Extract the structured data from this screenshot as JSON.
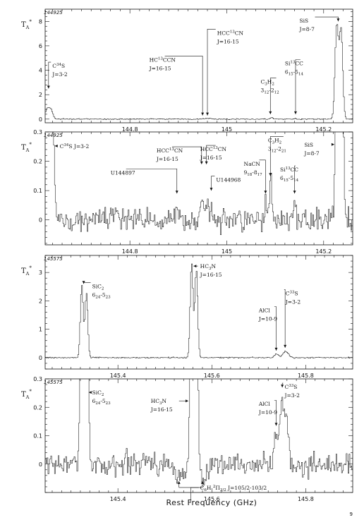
{
  "page_number": "9",
  "xlabel": "Rest Frequency (GHz)",
  "chart_data": [
    {
      "type": "line",
      "panel_id": "144925",
      "ylabel_main": "T",
      "ylabel_sub": "A",
      "ylabel_sup": "*",
      "xlim": [
        144.625,
        145.26
      ],
      "ylim": [
        -0.3,
        9.0
      ],
      "xticks": [
        144.8,
        145.0,
        145.2
      ],
      "xtick_labels": [
        "144.8",
        "145",
        "145.2"
      ],
      "yticks": [
        0,
        2,
        4,
        6,
        8
      ],
      "ytick_labels": [
        "0",
        "2",
        "4",
        "6",
        "8"
      ],
      "noise": 0.03,
      "peaks": [
        {
          "x": 144.628,
          "amp": 0.8,
          "w": 0.004
        },
        {
          "x": 144.636,
          "amp": 0.75,
          "w": 0.004
        },
        {
          "x": 144.955,
          "amp": 0.06,
          "w": 0.003
        },
        {
          "x": 144.965,
          "amp": 0.05,
          "w": 0.003
        },
        {
          "x": 145.092,
          "amp": 0.12,
          "w": 0.003
        },
        {
          "x": 145.14,
          "amp": 0.04,
          "w": 0.003
        },
        {
          "x": 145.226,
          "amp": 7.6,
          "w": 0.0035
        },
        {
          "x": 145.235,
          "amp": 7.2,
          "w": 0.0035
        }
      ],
      "labels": [
        {
          "lines": [
            "C^{34}S",
            "J=3-2"
          ],
          "x": 144.632,
          "y": 2.5,
          "tx": 144.64,
          "ty": 4.2
        },
        {
          "lines": [
            "HC^{13}CCN",
            "J=16-15"
          ],
          "x": 144.95,
          "y": 0.3,
          "tx": 144.84,
          "ty": 4.7
        },
        {
          "lines": [
            "HCC^{13}CN",
            "J=16-15"
          ],
          "x": 144.96,
          "y": 0.3,
          "tx": 144.98,
          "ty": 6.9
        },
        {
          "lines": [
            "C_{3}H_{2}",
            "3_{12}-2_{12}"
          ],
          "x": 145.09,
          "y": 0.4,
          "tx": 145.07,
          "ty": 2.9
        },
        {
          "lines": [
            "Si^{13}CC",
            "6_{15}-5_{14}"
          ],
          "x": 145.142,
          "y": 0.4,
          "tx": 145.12,
          "ty": 4.4
        },
        {
          "lines": [
            "SiS",
            "J=8-7"
          ],
          "x": 145.23,
          "y": 8.0,
          "tx": 145.15,
          "ty": 7.9
        }
      ]
    },
    {
      "type": "line",
      "panel_id": "144925",
      "ylabel_main": "T",
      "ylabel_sub": "A",
      "ylabel_sup": "*",
      "xlim": [
        144.625,
        145.26
      ],
      "ylim": [
        -0.085,
        0.3
      ],
      "xticks": [
        144.8,
        145.0,
        145.2
      ],
      "xtick_labels": [
        "144.8",
        "145",
        "145.2"
      ],
      "yticks": [
        0,
        0.1,
        0.2,
        0.3
      ],
      "ytick_labels": [
        "0",
        "0.1",
        "0.2",
        "0.3"
      ],
      "noise": 0.032,
      "peaks": [
        {
          "x": 144.628,
          "amp": 0.9,
          "w": 0.004
        },
        {
          "x": 144.636,
          "amp": 0.9,
          "w": 0.004
        },
        {
          "x": 144.897,
          "amp": 0.05,
          "w": 0.002
        },
        {
          "x": 144.948,
          "amp": 0.08,
          "w": 0.003
        },
        {
          "x": 144.958,
          "amp": 0.07,
          "w": 0.003
        },
        {
          "x": 144.968,
          "amp": 0.05,
          "w": 0.002
        },
        {
          "x": 145.08,
          "amp": 0.05,
          "w": 0.002
        },
        {
          "x": 145.09,
          "amp": 0.13,
          "w": 0.003
        },
        {
          "x": 145.14,
          "amp": 0.05,
          "w": 0.002
        },
        {
          "x": 145.228,
          "amp": 0.9,
          "w": 0.0035
        },
        {
          "x": 145.235,
          "amp": 0.9,
          "w": 0.0035
        }
      ],
      "labels": [
        {
          "lines": [
            "C^{34}S J=3-2"
          ],
          "x": 144.645,
          "y": 0.245,
          "tx": 144.655,
          "ty": 0.245,
          "h": true
        },
        {
          "lines": [
            "HCC^{13}CN",
            "J=16-15"
          ],
          "x": 144.948,
          "y": 0.19,
          "tx": 144.855,
          "ty": 0.23
        },
        {
          "lines": [
            "HCC^{13}CN",
            "J=16-15"
          ],
          "x": 144.958,
          "y": 0.19,
          "tx": 144.945,
          "ty": 0.235
        },
        {
          "lines": [
            "U144897"
          ],
          "x": 144.897,
          "y": 0.09,
          "tx": 144.76,
          "ty": 0.155
        },
        {
          "lines": [
            "U144968"
          ],
          "x": 144.968,
          "y": 0.1,
          "tx": 144.978,
          "ty": 0.13
        },
        {
          "lines": [
            "NaCN",
            "9_{18}-8_{17}"
          ],
          "x": 145.08,
          "y": 0.09,
          "tx": 145.035,
          "ty": 0.185
        },
        {
          "lines": [
            "C_{3}H_{2}",
            "3_{12}-2_{21}"
          ],
          "x": 145.09,
          "y": 0.15,
          "tx": 145.085,
          "ty": 0.265
        },
        {
          "lines": [
            "Si^{13}CC",
            "6_{15}-5_{14}"
          ],
          "x": 145.14,
          "y": 0.09,
          "tx": 145.11,
          "ty": 0.165
        },
        {
          "lines": [
            "SiS",
            "J=8-7"
          ],
          "x": 145.222,
          "y": 0.25,
          "tx": 145.16,
          "ty": 0.25,
          "h": true
        }
      ]
    },
    {
      "type": "line",
      "panel_id": "145575",
      "ylabel_main": "T",
      "ylabel_sub": "A",
      "ylabel_sup": "*",
      "xlim": [
        145.245,
        145.9
      ],
      "ylim": [
        -0.4,
        3.6
      ],
      "xticks": [
        145.4,
        145.6,
        145.8
      ],
      "xtick_labels": [
        "145.4",
        "145.6",
        "145.8"
      ],
      "yticks": [
        0,
        1,
        2,
        3
      ],
      "ytick_labels": [
        "0",
        "1",
        "2",
        "3"
      ],
      "noise": 0.015,
      "peaks": [
        {
          "x": 145.322,
          "amp": 2.55,
          "w": 0.003
        },
        {
          "x": 145.332,
          "amp": 2.25,
          "w": 0.003
        },
        {
          "x": 145.556,
          "amp": 3.35,
          "w": 0.003
        },
        {
          "x": 145.566,
          "amp": 3.1,
          "w": 0.003
        },
        {
          "x": 145.737,
          "amp": 0.12,
          "w": 0.004
        },
        {
          "x": 145.756,
          "amp": 0.22,
          "w": 0.006
        }
      ],
      "labels": [
        {
          "lines": [
            "SiC_{2}",
            "6_{24}-5_{23}"
          ],
          "x": 145.327,
          "y": 2.6,
          "tx": 145.345,
          "ty": 2.45
        },
        {
          "lines": [
            "HC_{3}N",
            "J=16-15"
          ],
          "x": 145.561,
          "y": 3.25,
          "tx": 145.575,
          "ty": 3.15,
          "h": true
        },
        {
          "lines": [
            "AlCl",
            "J=10-9"
          ],
          "x": 145.737,
          "y": 0.25,
          "tx": 145.7,
          "ty": 1.6
        },
        {
          "lines": [
            "C^{33}S",
            "J=3-2"
          ],
          "x": 145.756,
          "y": 0.35,
          "tx": 145.757,
          "ty": 2.2
        }
      ]
    },
    {
      "type": "line",
      "panel_id": "145575",
      "ylabel_main": "T",
      "ylabel_sub": "A",
      "ylabel_sup": "*",
      "xlim": [
        145.245,
        145.9
      ],
      "ylim": [
        -0.1,
        0.3
      ],
      "xticks": [
        145.4,
        145.6,
        145.8
      ],
      "xtick_labels": [
        "145.4",
        "145.6",
        "145.8"
      ],
      "yticks": [
        0,
        0.1,
        0.2,
        0.3
      ],
      "ytick_labels": [
        "0",
        "0.1",
        "0.2",
        "0.3"
      ],
      "noise": 0.03,
      "peaks": [
        {
          "x": 145.322,
          "amp": 0.9,
          "w": 0.003
        },
        {
          "x": 145.332,
          "amp": 0.9,
          "w": 0.003
        },
        {
          "x": 145.556,
          "amp": 0.9,
          "w": 0.003
        },
        {
          "x": 145.566,
          "amp": 0.9,
          "w": 0.003
        },
        {
          "x": 145.737,
          "amp": 0.11,
          "w": 0.004
        },
        {
          "x": 145.748,
          "amp": 0.2,
          "w": 0.004
        },
        {
          "x": 145.758,
          "amp": 0.17,
          "w": 0.004
        }
      ],
      "dips": [
        {
          "x": 145.53,
          "amp": 0.05,
          "w": 0.008
        },
        {
          "x": 145.58,
          "amp": 0.05,
          "w": 0.008
        }
      ],
      "labels": [
        {
          "lines": [
            "SiC_{2}",
            "6_{24}-5_{23}"
          ],
          "x": 145.338,
          "y": 0.245,
          "tx": 145.345,
          "ty": 0.245,
          "h": true
        },
        {
          "lines": [
            "HC_{3}N",
            "J=16-15"
          ],
          "x": 145.55,
          "y": 0.215,
          "tx": 145.47,
          "ty": 0.215,
          "h": true
        },
        {
          "lines": [
            "AlCl",
            "J=10-9"
          ],
          "x": 145.737,
          "y": 0.135,
          "tx": 145.7,
          "ty": 0.205
        },
        {
          "lines": [
            "C^{33}S",
            "J=3-2"
          ],
          "x": 145.75,
          "y": 0.27,
          "tx": 145.755,
          "ty": 0.265
        }
      ],
      "bottom_label": {
        "lines": [
          "C_{6}H ^{2}Π_{3/2} J=105/2-103/2"
        ],
        "xs": [
          145.53,
          145.58
        ],
        "center": 145.555,
        "y": -0.06,
        "tx": 145.575,
        "ty": -0.09
      }
    }
  ]
}
